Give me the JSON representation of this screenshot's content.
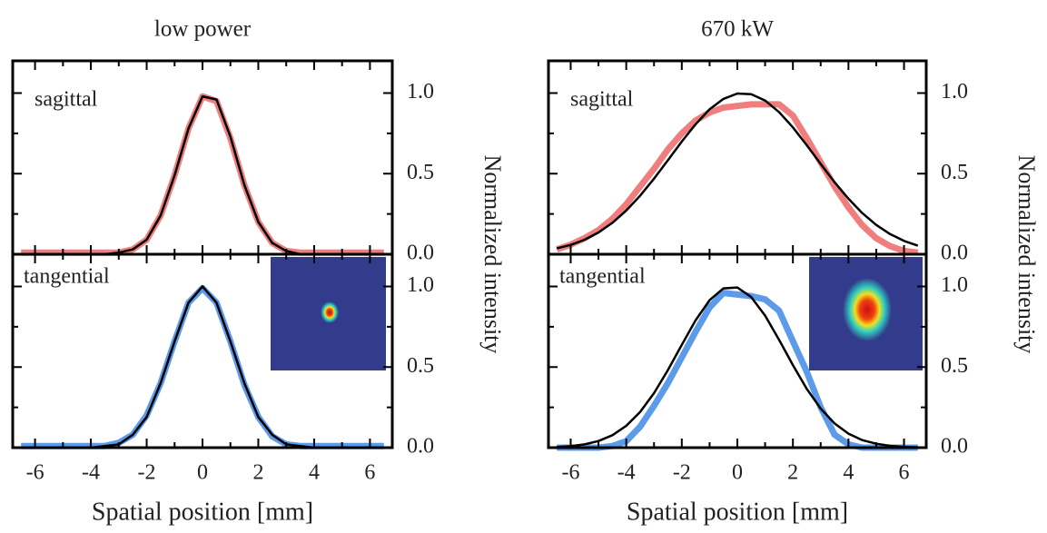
{
  "chart_data": [
    {
      "type": "line",
      "title": "low power",
      "x_label": "Spatial position [mm]",
      "y_label": "Normalized intensity",
      "x": [
        -6.5,
        -6,
        -5.5,
        -5,
        -4.5,
        -4,
        -3.5,
        -3,
        -2.5,
        -2,
        -1.5,
        -1,
        -0.5,
        0,
        0.5,
        1,
        1.5,
        2,
        2.5,
        3,
        3.5,
        4,
        4.5,
        5,
        5.5,
        6,
        6.5
      ],
      "xlim": [
        -6.8,
        6.8
      ],
      "xticks": [
        -6,
        -4,
        -2,
        0,
        2,
        4,
        6
      ],
      "xminor": [
        -5,
        -3,
        -1,
        1,
        3,
        5
      ],
      "panels": [
        {
          "annotation": "sagittal",
          "ylim": [
            0,
            1.2
          ],
          "yticks": [
            {
              "value": 0,
              "label": "0.0"
            },
            {
              "value": 0.5,
              "label": "0.5"
            },
            {
              "value": 1,
              "label": "1.0"
            }
          ],
          "yminor": [
            0.25,
            0.75
          ],
          "series": [
            {
              "color": "#f07070",
              "values": [
                0.01,
                0.01,
                0.01,
                0.01,
                0.01,
                0.01,
                0.01,
                0.01,
                0.03,
                0.09,
                0.24,
                0.49,
                0.78,
                0.98,
                0.95,
                0.72,
                0.43,
                0.2,
                0.07,
                0.02,
                0.01,
                0.01,
                0.01,
                0.01,
                0.01,
                0.01,
                0.01
              ]
            },
            {
              "color": "#000000",
              "values": [
                0,
                0,
                0,
                0,
                0,
                0,
                0,
                0.01,
                0.03,
                0.09,
                0.24,
                0.49,
                0.78,
                0.98,
                0.96,
                0.73,
                0.43,
                0.2,
                0.07,
                0.02,
                0,
                0,
                0,
                0,
                0,
                0,
                0
              ]
            }
          ]
        },
        {
          "annotation": "tangential",
          "ylim": [
            0,
            1.2
          ],
          "yticks": [
            {
              "value": 0,
              "label": "0.0"
            },
            {
              "value": 0.5,
              "label": "0.5"
            },
            {
              "value": 1,
              "label": "1.0"
            }
          ],
          "yminor": [
            0.25,
            0.75
          ],
          "series": [
            {
              "color": "#4a90e8",
              "values": [
                0.01,
                0.01,
                0.01,
                0.01,
                0.01,
                0.01,
                0.01,
                0.03,
                0.08,
                0.2,
                0.4,
                0.66,
                0.9,
                0.99,
                0.9,
                0.66,
                0.39,
                0.19,
                0.07,
                0.02,
                0.01,
                0.01,
                0.01,
                0.01,
                0.01,
                0.01,
                0.01
              ]
            },
            {
              "color": "#000000",
              "values": [
                0,
                0,
                0,
                0,
                0,
                0,
                0.01,
                0.02,
                0.08,
                0.19,
                0.4,
                0.66,
                0.9,
                1,
                0.9,
                0.66,
                0.4,
                0.19,
                0.08,
                0.02,
                0.01,
                0,
                0,
                0,
                0,
                0,
                0
              ]
            }
          ]
        }
      ]
    },
    {
      "type": "line",
      "title": "670 kW",
      "x_label": "Spatial position [mm]",
      "y_label": "Normalized intensity",
      "x": [
        -6.5,
        -6,
        -5.5,
        -5,
        -4.5,
        -4,
        -3.5,
        -3,
        -2.5,
        -2,
        -1.5,
        -1,
        -0.5,
        0,
        0.5,
        1,
        1.5,
        2,
        2.5,
        3,
        3.5,
        4,
        4.5,
        5,
        5.5,
        6,
        6.5
      ],
      "xlim": [
        -6.8,
        6.8
      ],
      "xticks": [
        -6,
        -4,
        -2,
        0,
        2,
        4,
        6
      ],
      "xminor": [
        -5,
        -3,
        -1,
        1,
        3,
        5
      ],
      "panels": [
        {
          "annotation": "sagittal",
          "ylim": [
            0,
            1.2
          ],
          "yticks": [
            {
              "value": 0,
              "label": "0.0"
            },
            {
              "value": 0.5,
              "label": "0.5"
            },
            {
              "value": 1,
              "label": "1.0"
            }
          ],
          "yminor": [
            0.25,
            0.75
          ],
          "series": [
            {
              "color": "#f07070",
              "values": [
                0.03,
                0.06,
                0.1,
                0.15,
                0.22,
                0.31,
                0.42,
                0.53,
                0.65,
                0.75,
                0.83,
                0.88,
                0.91,
                0.92,
                0.93,
                0.93,
                0.93,
                0.86,
                0.72,
                0.57,
                0.42,
                0.29,
                0.18,
                0.1,
                0.05,
                0.02,
                0.01
              ]
            },
            {
              "color": "#000000",
              "values": [
                0.036,
                0.058,
                0.09,
                0.135,
                0.195,
                0.271,
                0.363,
                0.469,
                0.583,
                0.699,
                0.807,
                0.899,
                0.964,
                0.997,
                0.993,
                0.954,
                0.882,
                0.787,
                0.676,
                0.56,
                0.447,
                0.344,
                0.255,
                0.182,
                0.125,
                0.083,
                0.053
              ]
            }
          ]
        },
        {
          "annotation": "tangential",
          "ylim": [
            0,
            1.2
          ],
          "yticks": [
            {
              "value": 0,
              "label": "0.0"
            },
            {
              "value": 0.5,
              "label": "0.5"
            },
            {
              "value": 1,
              "label": "1.0"
            }
          ],
          "yminor": [
            0.25,
            0.75
          ],
          "series": [
            {
              "color": "#4a90e8",
              "values": [
                0,
                0,
                0,
                0,
                0.01,
                0.04,
                0.13,
                0.26,
                0.4,
                0.56,
                0.72,
                0.87,
                0.96,
                0.95,
                0.94,
                0.92,
                0.85,
                0.66,
                0.47,
                0.25,
                0.08,
                0.02,
                0,
                0,
                0,
                0,
                0
              ]
            },
            {
              "color": "#000000",
              "values": [
                0.004,
                0.009,
                0.02,
                0.041,
                0.077,
                0.135,
                0.221,
                0.338,
                0.481,
                0.638,
                0.791,
                0.915,
                0.988,
                0.994,
                0.934,
                0.819,
                0.67,
                0.512,
                0.364,
                0.242,
                0.15,
                0.087,
                0.047,
                0.024,
                0.011,
                0.005,
                0.002
              ]
            }
          ]
        }
      ]
    }
  ]
}
